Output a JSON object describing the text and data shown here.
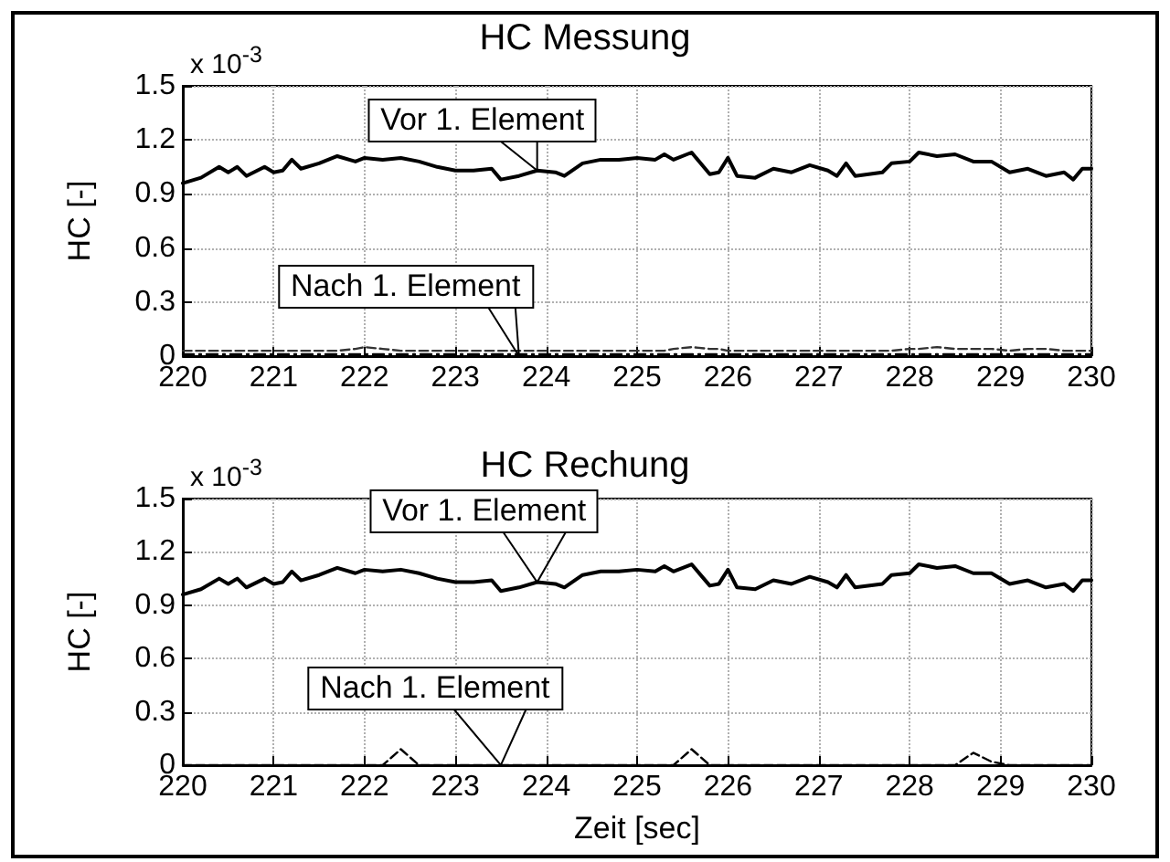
{
  "chart_data": [
    {
      "type": "line",
      "title": "HC Messung",
      "ylabel": "HC [-]",
      "xlim": [
        220,
        230
      ],
      "xticks": [
        220,
        221,
        222,
        223,
        224,
        225,
        226,
        227,
        228,
        229,
        230
      ],
      "ylim": [
        0,
        1.5
      ],
      "yticks": [
        0,
        0.3,
        0.6,
        0.9,
        1.2,
        1.5
      ],
      "grid": true,
      "annotations": [
        "x 10$^{-3}$",
        {
          "text": "Vor 1. Element",
          "x": 223.9,
          "y": 1.03
        },
        {
          "text": "Nach 1. Element",
          "x": 223.7,
          "y": 0
        }
      ],
      "x": [
        220.0,
        220.2,
        220.4,
        220.5,
        220.6,
        220.7,
        220.9,
        221.0,
        221.1,
        221.2,
        221.3,
        221.5,
        221.7,
        221.9,
        222.0,
        222.2,
        222.4,
        222.6,
        222.8,
        223.0,
        223.2,
        223.4,
        223.5,
        223.7,
        223.9,
        224.1,
        224.2,
        224.4,
        224.6,
        224.8,
        225.0,
        225.2,
        225.3,
        225.4,
        225.6,
        225.8,
        225.9,
        226.0,
        226.1,
        226.3,
        226.5,
        226.7,
        226.9,
        227.1,
        227.2,
        227.3,
        227.4,
        227.7,
        227.8,
        228.0,
        228.1,
        228.3,
        228.5,
        228.7,
        228.9,
        229.1,
        229.3,
        229.5,
        229.7,
        229.8,
        229.9,
        230.0
      ],
      "series": [
        {
          "color": "#000000",
          "line_style": "solid",
          "values": [
            0.96,
            0.99,
            1.05,
            1.02,
            1.05,
            1.0,
            1.05,
            1.02,
            1.03,
            1.09,
            1.04,
            1.07,
            1.11,
            1.08,
            1.1,
            1.09,
            1.1,
            1.08,
            1.05,
            1.03,
            1.03,
            1.04,
            0.98,
            1.0,
            1.03,
            1.02,
            1.0,
            1.07,
            1.09,
            1.09,
            1.1,
            1.09,
            1.12,
            1.09,
            1.13,
            1.01,
            1.02,
            1.1,
            1.0,
            0.99,
            1.04,
            1.02,
            1.06,
            1.03,
            1.0,
            1.07,
            1.0,
            1.02,
            1.07,
            1.08,
            1.13,
            1.11,
            1.12,
            1.08,
            1.08,
            1.02,
            1.04,
            1.0,
            1.02,
            0.98,
            1.04,
            1.04
          ]
        },
        {
          "color": "#333333",
          "line_style": "dashed",
          "values": [
            0.03,
            0.03,
            0.03,
            0.03,
            0.03,
            0.03,
            0.03,
            0.03,
            0.03,
            0.03,
            0.03,
            0.03,
            0.03,
            0.04,
            0.05,
            0.04,
            0.03,
            0.03,
            0.03,
            0.03,
            0.03,
            0.03,
            0.03,
            0.03,
            0.03,
            0.03,
            0.03,
            0.03,
            0.03,
            0.03,
            0.03,
            0.03,
            0.03,
            0.04,
            0.05,
            0.04,
            0.04,
            0.03,
            0.03,
            0.03,
            0.03,
            0.03,
            0.03,
            0.03,
            0.03,
            0.03,
            0.03,
            0.03,
            0.03,
            0.04,
            0.04,
            0.05,
            0.04,
            0.04,
            0.04,
            0.03,
            0.04,
            0.04,
            0.03,
            0.03,
            0.03,
            0.03
          ]
        },
        {
          "color": "#000000",
          "line_style": "dotted",
          "values": [
            0.01,
            0.01,
            0.01,
            0.01,
            0.01,
            0.01,
            0.01,
            0.01,
            0.01,
            0.01,
            0.01,
            0.01,
            0.01,
            0.01,
            0.01,
            0.01,
            0.01,
            0.01,
            0.01,
            0.01,
            0.01,
            0.01,
            0.01,
            0.01,
            0.01,
            0.01,
            0.01,
            0.01,
            0.01,
            0.01,
            0.01,
            0.01,
            0.01,
            0.01,
            0.01,
            0.01,
            0.01,
            0.01,
            0.01,
            0.01,
            0.01,
            0.01,
            0.01,
            0.01,
            0.01,
            0.01,
            0.01,
            0.01,
            0.01,
            0.01,
            0.01,
            0.01,
            0.01,
            0.01,
            0.01,
            0.01,
            0.01,
            0.01,
            0.01,
            0.01,
            0.01,
            0.01
          ]
        }
      ]
    },
    {
      "type": "line",
      "title": "HC Rechung",
      "ylabel": "HC [-]",
      "xlabel": "Zeit [sec]",
      "xlim": [
        220,
        230
      ],
      "xticks": [
        220,
        221,
        222,
        223,
        224,
        225,
        226,
        227,
        228,
        229,
        230
      ],
      "ylim": [
        0,
        1.5
      ],
      "yticks": [
        0,
        0.3,
        0.6,
        0.9,
        1.2,
        1.5
      ],
      "grid": true,
      "annotations": [
        "x 10$^{-3}$",
        {
          "text": "Vor 1. Element",
          "x": 223.9,
          "y": 1.03
        },
        {
          "text": "Nach 1. Element",
          "x": 223.5,
          "y": 0
        }
      ],
      "x": [
        220.0,
        220.2,
        220.4,
        220.5,
        220.6,
        220.7,
        220.9,
        221.0,
        221.1,
        221.2,
        221.3,
        221.5,
        221.7,
        221.9,
        222.0,
        222.2,
        222.4,
        222.6,
        222.8,
        223.0,
        223.2,
        223.4,
        223.5,
        223.7,
        223.9,
        224.1,
        224.2,
        224.4,
        224.6,
        224.8,
        225.0,
        225.2,
        225.3,
        225.4,
        225.6,
        225.8,
        225.9,
        226.0,
        226.1,
        226.3,
        226.5,
        226.7,
        226.9,
        227.1,
        227.2,
        227.3,
        227.4,
        227.7,
        227.8,
        228.0,
        228.1,
        228.3,
        228.5,
        228.7,
        228.9,
        229.1,
        229.3,
        229.5,
        229.7,
        229.8,
        229.9,
        230.0
      ],
      "series": [
        {
          "color": "#000000",
          "line_style": "solid",
          "values": [
            0.96,
            0.99,
            1.05,
            1.02,
            1.05,
            1.0,
            1.05,
            1.02,
            1.03,
            1.09,
            1.04,
            1.07,
            1.11,
            1.08,
            1.1,
            1.09,
            1.1,
            1.08,
            1.05,
            1.03,
            1.03,
            1.04,
            0.98,
            1.0,
            1.03,
            1.02,
            1.0,
            1.07,
            1.09,
            1.09,
            1.1,
            1.09,
            1.12,
            1.09,
            1.13,
            1.01,
            1.02,
            1.1,
            1.0,
            0.99,
            1.04,
            1.02,
            1.06,
            1.03,
            1.0,
            1.07,
            1.0,
            1.02,
            1.07,
            1.08,
            1.13,
            1.11,
            1.12,
            1.08,
            1.08,
            1.02,
            1.04,
            1.0,
            1.02,
            0.98,
            1.04,
            1.04
          ]
        },
        {
          "color": "#000000",
          "line_style": "dashed",
          "values": [
            0,
            0,
            0,
            0,
            0,
            0,
            0,
            0,
            0,
            0,
            0,
            0,
            0,
            0,
            0,
            0,
            0.09,
            0,
            0,
            0,
            0,
            0,
            0,
            0,
            0,
            0,
            0,
            0,
            0,
            0,
            0,
            0,
            0,
            0,
            0.09,
            0,
            0,
            0,
            0,
            0,
            0,
            0,
            0,
            0,
            0,
            0,
            0,
            0,
            0,
            0,
            0,
            0,
            0,
            0.07,
            0.02,
            0,
            0,
            0,
            0,
            0,
            0,
            0
          ]
        }
      ]
    }
  ]
}
